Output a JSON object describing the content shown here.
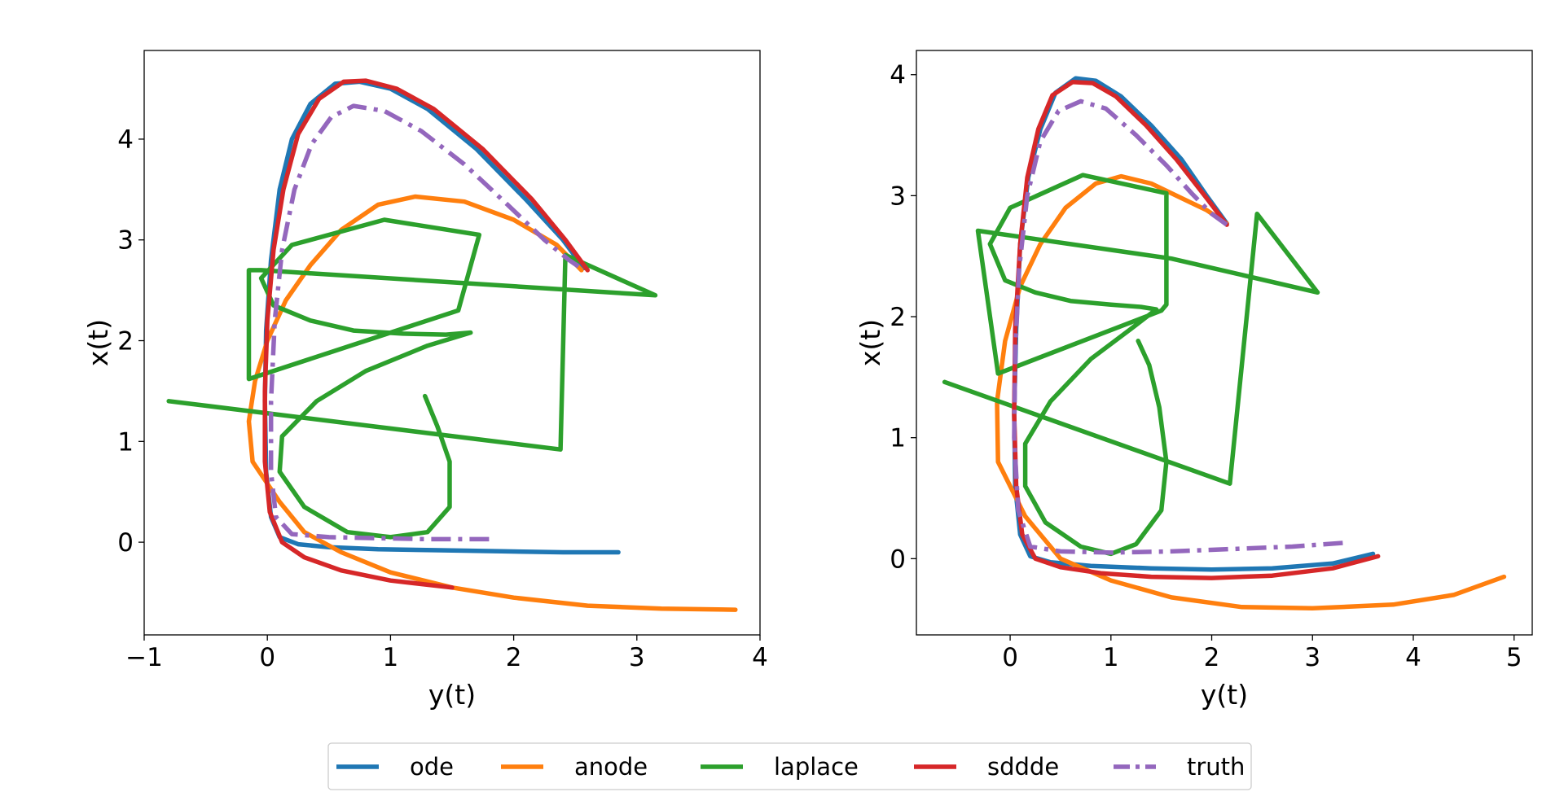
{
  "colors": {
    "ode": "#1f77b4",
    "anode": "#ff7f0e",
    "laplace": "#2ca02c",
    "sddde": "#d62728",
    "truth": "#9467bd"
  },
  "legend": {
    "placement": "bottom-center",
    "entries": [
      {
        "label": "ode",
        "color": "#1f77b4",
        "style": "solid"
      },
      {
        "label": "anode",
        "color": "#ff7f0e",
        "style": "solid"
      },
      {
        "label": "laplace",
        "color": "#2ca02c",
        "style": "solid"
      },
      {
        "label": "sddde",
        "color": "#d62728",
        "style": "solid"
      },
      {
        "label": "truth",
        "color": "#9467bd",
        "style": "dashdot"
      }
    ]
  },
  "chart_data": [
    {
      "type": "line",
      "xlabel": "y(t)",
      "ylabel": "x(t)",
      "xlim": [
        -1.0,
        4.0
      ],
      "ylim": [
        -0.92,
        4.88
      ],
      "xticks": [
        "−1",
        "0",
        "1",
        "2",
        "3",
        "4"
      ],
      "xtick_values": [
        -1,
        0,
        1,
        2,
        3,
        4
      ],
      "yticks": [
        "0",
        "1",
        "2",
        "3",
        "4"
      ],
      "ytick_values": [
        0,
        1,
        2,
        3,
        4
      ],
      "series": [
        {
          "name": "ode",
          "style": "solid",
          "points": [
            [
              2.85,
              -0.1
            ],
            [
              2.4,
              -0.1
            ],
            [
              1.9,
              -0.09
            ],
            [
              1.4,
              -0.08
            ],
            [
              0.9,
              -0.07
            ],
            [
              0.5,
              -0.05
            ],
            [
              0.25,
              -0.02
            ],
            [
              0.1,
              0.05
            ],
            [
              0.03,
              0.25
            ],
            [
              -0.01,
              0.7
            ],
            [
              -0.02,
              1.4
            ],
            [
              -0.01,
              2.1
            ],
            [
              0.03,
              2.8
            ],
            [
              0.1,
              3.5
            ],
            [
              0.2,
              4.0
            ],
            [
              0.35,
              4.35
            ],
            [
              0.55,
              4.55
            ],
            [
              0.75,
              4.57
            ],
            [
              1.0,
              4.5
            ],
            [
              1.3,
              4.3
            ],
            [
              1.7,
              3.9
            ],
            [
              2.1,
              3.4
            ],
            [
              2.4,
              3.0
            ],
            [
              2.57,
              2.72
            ]
          ]
        },
        {
          "name": "anode",
          "style": "solid",
          "points": [
            [
              3.8,
              -0.67
            ],
            [
              3.2,
              -0.66
            ],
            [
              2.6,
              -0.63
            ],
            [
              2.0,
              -0.55
            ],
            [
              1.5,
              -0.45
            ],
            [
              1.0,
              -0.3
            ],
            [
              0.6,
              -0.1
            ],
            [
              0.3,
              0.1
            ],
            [
              0.1,
              0.4
            ],
            [
              -0.12,
              0.8
            ],
            [
              -0.15,
              1.2
            ],
            [
              -0.1,
              1.6
            ],
            [
              0.0,
              2.0
            ],
            [
              0.15,
              2.4
            ],
            [
              0.35,
              2.75
            ],
            [
              0.6,
              3.1
            ],
            [
              0.9,
              3.35
            ],
            [
              1.2,
              3.43
            ],
            [
              1.6,
              3.38
            ],
            [
              2.0,
              3.2
            ],
            [
              2.35,
              2.95
            ],
            [
              2.55,
              2.7
            ]
          ]
        },
        {
          "name": "laplace",
          "style": "solid",
          "points": [
            [
              -0.8,
              1.4
            ],
            [
              2.38,
              0.92
            ],
            [
              2.42,
              2.85
            ],
            [
              3.15,
              2.45
            ],
            [
              -0.05,
              2.7
            ],
            [
              -0.15,
              2.7
            ],
            [
              -0.15,
              1.62
            ],
            [
              1.55,
              2.3
            ],
            [
              1.72,
              3.05
            ],
            [
              0.95,
              3.2
            ],
            [
              0.2,
              2.95
            ],
            [
              -0.05,
              2.62
            ],
            [
              0.05,
              2.35
            ],
            [
              0.35,
              2.2
            ],
            [
              0.7,
              2.1
            ],
            [
              1.1,
              2.07
            ],
            [
              1.45,
              2.06
            ],
            [
              1.65,
              2.08
            ],
            [
              1.3,
              1.95
            ],
            [
              0.8,
              1.7
            ],
            [
              0.4,
              1.4
            ],
            [
              0.12,
              1.05
            ],
            [
              0.1,
              0.7
            ],
            [
              0.3,
              0.35
            ],
            [
              0.65,
              0.1
            ],
            [
              1.0,
              0.05
            ],
            [
              1.3,
              0.1
            ],
            [
              1.48,
              0.35
            ],
            [
              1.48,
              0.8
            ],
            [
              1.38,
              1.15
            ],
            [
              1.28,
              1.45
            ]
          ]
        },
        {
          "name": "sddde",
          "style": "solid",
          "points": [
            [
              1.5,
              -0.45
            ],
            [
              1.0,
              -0.38
            ],
            [
              0.6,
              -0.28
            ],
            [
              0.3,
              -0.15
            ],
            [
              0.12,
              0.0
            ],
            [
              0.02,
              0.3
            ],
            [
              -0.02,
              0.8
            ],
            [
              -0.02,
              1.5
            ],
            [
              0.0,
              2.2
            ],
            [
              0.05,
              2.9
            ],
            [
              0.13,
              3.5
            ],
            [
              0.25,
              4.05
            ],
            [
              0.42,
              4.4
            ],
            [
              0.62,
              4.57
            ],
            [
              0.8,
              4.58
            ],
            [
              1.05,
              4.5
            ],
            [
              1.35,
              4.3
            ],
            [
              1.75,
              3.9
            ],
            [
              2.15,
              3.4
            ],
            [
              2.42,
              3.0
            ],
            [
              2.6,
              2.7
            ]
          ]
        },
        {
          "name": "truth",
          "style": "dashdot",
          "points": [
            [
              1.8,
              0.03
            ],
            [
              1.3,
              0.03
            ],
            [
              0.9,
              0.04
            ],
            [
              0.5,
              0.05
            ],
            [
              0.2,
              0.08
            ],
            [
              0.07,
              0.25
            ],
            [
              0.03,
              0.7
            ],
            [
              0.03,
              1.4
            ],
            [
              0.06,
              2.2
            ],
            [
              0.12,
              2.9
            ],
            [
              0.22,
              3.5
            ],
            [
              0.36,
              3.95
            ],
            [
              0.52,
              4.22
            ],
            [
              0.7,
              4.33
            ],
            [
              0.95,
              4.28
            ],
            [
              1.25,
              4.08
            ],
            [
              1.6,
              3.75
            ],
            [
              1.95,
              3.35
            ],
            [
              2.25,
              3.0
            ],
            [
              2.45,
              2.8
            ],
            [
              2.57,
              2.7
            ]
          ]
        }
      ]
    },
    {
      "type": "line",
      "xlabel": "y(t)",
      "ylabel": "x(t)",
      "xlim": [
        -0.93,
        5.18
      ],
      "ylim": [
        -0.63,
        4.2
      ],
      "xticks": [
        "0",
        "1",
        "2",
        "3",
        "4",
        "5"
      ],
      "xtick_values": [
        0,
        1,
        2,
        3,
        4,
        5
      ],
      "yticks": [
        "0",
        "1",
        "2",
        "3",
        "4"
      ],
      "ytick_values": [
        0,
        1,
        2,
        3,
        4
      ],
      "series": [
        {
          "name": "ode",
          "style": "solid",
          "points": [
            [
              3.6,
              0.04
            ],
            [
              3.2,
              -0.04
            ],
            [
              2.6,
              -0.08
            ],
            [
              2.0,
              -0.09
            ],
            [
              1.4,
              -0.08
            ],
            [
              0.8,
              -0.06
            ],
            [
              0.4,
              -0.03
            ],
            [
              0.2,
              0.02
            ],
            [
              0.1,
              0.2
            ],
            [
              0.05,
              0.6
            ],
            [
              0.04,
              1.2
            ],
            [
              0.06,
              1.9
            ],
            [
              0.1,
              2.6
            ],
            [
              0.18,
              3.15
            ],
            [
              0.3,
              3.55
            ],
            [
              0.45,
              3.85
            ],
            [
              0.65,
              3.97
            ],
            [
              0.85,
              3.95
            ],
            [
              1.1,
              3.82
            ],
            [
              1.4,
              3.58
            ],
            [
              1.7,
              3.3
            ],
            [
              1.95,
              3.0
            ],
            [
              2.15,
              2.77
            ]
          ]
        },
        {
          "name": "anode",
          "style": "solid",
          "points": [
            [
              4.9,
              -0.15
            ],
            [
              4.4,
              -0.3
            ],
            [
              3.8,
              -0.38
            ],
            [
              3.0,
              -0.41
            ],
            [
              2.3,
              -0.4
            ],
            [
              1.6,
              -0.32
            ],
            [
              1.0,
              -0.18
            ],
            [
              0.5,
              0.0
            ],
            [
              0.15,
              0.35
            ],
            [
              -0.12,
              0.8
            ],
            [
              -0.13,
              1.3
            ],
            [
              -0.05,
              1.8
            ],
            [
              0.1,
              2.25
            ],
            [
              0.3,
              2.6
            ],
            [
              0.55,
              2.9
            ],
            [
              0.85,
              3.1
            ],
            [
              1.1,
              3.16
            ],
            [
              1.4,
              3.1
            ],
            [
              1.7,
              2.98
            ],
            [
              1.95,
              2.88
            ],
            [
              2.15,
              2.77
            ]
          ]
        },
        {
          "name": "laplace",
          "style": "solid",
          "points": [
            [
              -0.65,
              1.46
            ],
            [
              2.18,
              0.62
            ],
            [
              2.45,
              2.85
            ],
            [
              3.05,
              2.2
            ],
            [
              1.6,
              2.48
            ],
            [
              -0.32,
              2.71
            ],
            [
              -0.12,
              1.53
            ],
            [
              1.5,
              2.05
            ],
            [
              1.55,
              2.1
            ],
            [
              1.55,
              3.02
            ],
            [
              0.72,
              3.17
            ],
            [
              0.0,
              2.9
            ],
            [
              -0.2,
              2.6
            ],
            [
              -0.05,
              2.3
            ],
            [
              0.25,
              2.2
            ],
            [
              0.6,
              2.13
            ],
            [
              1.0,
              2.1
            ],
            [
              1.3,
              2.08
            ],
            [
              1.45,
              2.06
            ],
            [
              1.2,
              1.9
            ],
            [
              0.8,
              1.65
            ],
            [
              0.4,
              1.3
            ],
            [
              0.15,
              0.95
            ],
            [
              0.15,
              0.6
            ],
            [
              0.35,
              0.3
            ],
            [
              0.7,
              0.1
            ],
            [
              1.0,
              0.04
            ],
            [
              1.25,
              0.12
            ],
            [
              1.5,
              0.4
            ],
            [
              1.55,
              0.8
            ],
            [
              1.48,
              1.25
            ],
            [
              1.38,
              1.6
            ],
            [
              1.27,
              1.8
            ]
          ]
        },
        {
          "name": "sddde",
          "style": "solid",
          "points": [
            [
              3.65,
              0.02
            ],
            [
              3.2,
              -0.08
            ],
            [
              2.6,
              -0.14
            ],
            [
              2.0,
              -0.16
            ],
            [
              1.4,
              -0.15
            ],
            [
              0.9,
              -0.12
            ],
            [
              0.5,
              -0.07
            ],
            [
              0.25,
              0.0
            ],
            [
              0.12,
              0.2
            ],
            [
              0.06,
              0.6
            ],
            [
              0.04,
              1.2
            ],
            [
              0.05,
              1.9
            ],
            [
              0.1,
              2.6
            ],
            [
              0.17,
              3.15
            ],
            [
              0.28,
              3.55
            ],
            [
              0.42,
              3.83
            ],
            [
              0.62,
              3.94
            ],
            [
              0.82,
              3.93
            ],
            [
              1.05,
              3.82
            ],
            [
              1.35,
              3.58
            ],
            [
              1.65,
              3.3
            ],
            [
              1.95,
              2.98
            ],
            [
              2.15,
              2.76
            ]
          ]
        },
        {
          "name": "truth",
          "style": "dashdot",
          "points": [
            [
              3.3,
              0.13
            ],
            [
              2.8,
              0.1
            ],
            [
              2.2,
              0.08
            ],
            [
              1.6,
              0.06
            ],
            [
              1.0,
              0.05
            ],
            [
              0.5,
              0.06
            ],
            [
              0.2,
              0.1
            ],
            [
              0.08,
              0.4
            ],
            [
              0.04,
              1.0
            ],
            [
              0.05,
              1.7
            ],
            [
              0.09,
              2.4
            ],
            [
              0.17,
              3.0
            ],
            [
              0.3,
              3.45
            ],
            [
              0.48,
              3.7
            ],
            [
              0.7,
              3.78
            ],
            [
              0.95,
              3.72
            ],
            [
              1.25,
              3.5
            ],
            [
              1.55,
              3.25
            ],
            [
              1.8,
              3.02
            ],
            [
              2.0,
              2.85
            ],
            [
              2.15,
              2.76
            ]
          ]
        }
      ]
    }
  ]
}
